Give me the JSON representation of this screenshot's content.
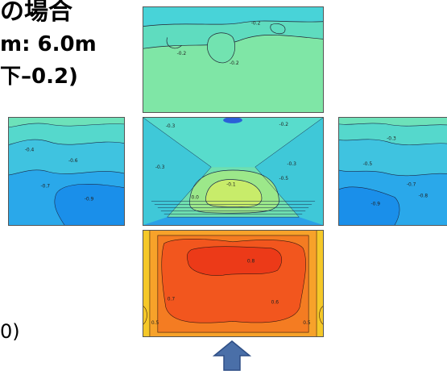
{
  "heading": {
    "line1": "の場合",
    "line2": "m: 6.0m",
    "line3": "下–0.2)"
  },
  "footnote": "0)",
  "panels": {
    "top": {
      "contour_labels": [
        "-0.2",
        "-0.2",
        "-0.2"
      ]
    },
    "center": {
      "contour_labels": [
        "-0.3",
        "-0.3",
        "-0.2",
        "-0.1",
        "0.0",
        "-0.3",
        "-0.5"
      ]
    },
    "left": {
      "contour_labels": [
        "-0.4",
        "-0.6",
        "-0.7",
        "-0.9"
      ]
    },
    "right": {
      "contour_labels": [
        "-0.3",
        "-0.5",
        "-0.7",
        "-0.8",
        "-0.9"
      ]
    },
    "bottom": {
      "contour_labels": [
        "0.8",
        "0.7",
        "0.6",
        "0.5",
        "0.5"
      ]
    }
  },
  "colors": {
    "arrow": "#4a6fa8",
    "arrow_stroke": "#2f4f86"
  }
}
